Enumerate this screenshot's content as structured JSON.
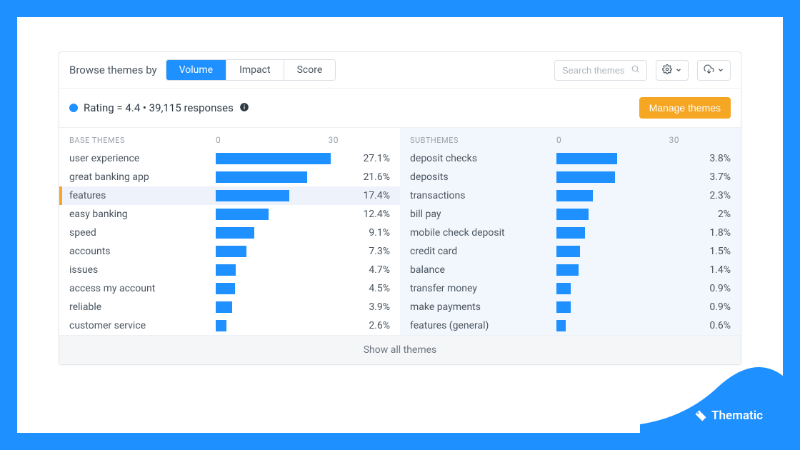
{
  "colors": {
    "primary": "#1e90ff",
    "accent": "#f5a623",
    "bg_right": "#f2f7fd",
    "text": "#4a5560",
    "muted": "#9aa2ab",
    "border": "#e2e6ea"
  },
  "header": {
    "browse_label": "Browse themes by",
    "tabs": [
      {
        "label": "Volume",
        "active": true
      },
      {
        "label": "Impact",
        "active": false
      },
      {
        "label": "Score",
        "active": false
      }
    ],
    "search_placeholder": "Search themes"
  },
  "subheader": {
    "rating_text": "Rating = 4.4 • 39,115 responses",
    "manage_button": "Manage themes"
  },
  "base": {
    "heading": "BASE THEMES",
    "scale_min": "0",
    "scale_max": "30",
    "max_value": 30,
    "rows": [
      {
        "name": "user experience",
        "value": 27.1,
        "pct": "27.1%",
        "selected": false
      },
      {
        "name": "great banking app",
        "value": 21.6,
        "pct": "21.6%",
        "selected": false
      },
      {
        "name": "features",
        "value": 17.4,
        "pct": "17.4%",
        "selected": true
      },
      {
        "name": "easy banking",
        "value": 12.4,
        "pct": "12.4%",
        "selected": false
      },
      {
        "name": "speed",
        "value": 9.1,
        "pct": "9.1%",
        "selected": false
      },
      {
        "name": "accounts",
        "value": 7.3,
        "pct": "7.3%",
        "selected": false
      },
      {
        "name": "issues",
        "value": 4.7,
        "pct": "4.7%",
        "selected": false
      },
      {
        "name": "access my account",
        "value": 4.5,
        "pct": "4.5%",
        "selected": false
      },
      {
        "name": "reliable",
        "value": 3.9,
        "pct": "3.9%",
        "selected": false
      },
      {
        "name": "customer service",
        "value": 2.6,
        "pct": "2.6%",
        "selected": false
      }
    ]
  },
  "sub": {
    "heading": "SUBTHEMES",
    "scale_min": "0",
    "scale_max": "30",
    "max_value": 8,
    "rows": [
      {
        "name": "deposit checks",
        "value": 3.8,
        "pct": "3.8%"
      },
      {
        "name": "deposits",
        "value": 3.7,
        "pct": "3.7%"
      },
      {
        "name": "transactions",
        "value": 2.3,
        "pct": "2.3%"
      },
      {
        "name": "bill pay",
        "value": 2.0,
        "pct": "2%"
      },
      {
        "name": "mobile check deposit",
        "value": 1.8,
        "pct": "1.8%"
      },
      {
        "name": "credit card",
        "value": 1.5,
        "pct": "1.5%"
      },
      {
        "name": "balance",
        "value": 1.4,
        "pct": "1.4%"
      },
      {
        "name": "transfer money",
        "value": 0.9,
        "pct": "0.9%"
      },
      {
        "name": "make payments",
        "value": 0.9,
        "pct": "0.9%"
      },
      {
        "name": "features (general)",
        "value": 0.6,
        "pct": "0.6%"
      }
    ]
  },
  "footer": {
    "show_all": "Show all themes"
  },
  "brand": {
    "name": "Thematic"
  }
}
